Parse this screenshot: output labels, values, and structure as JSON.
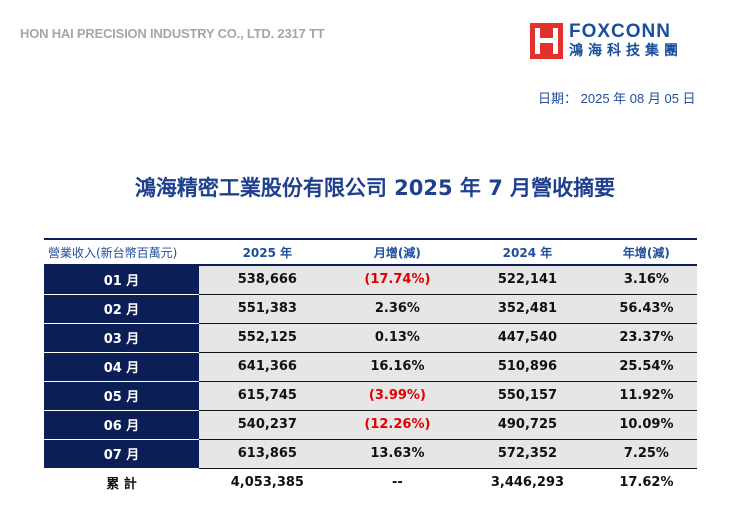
{
  "header": {
    "company": "HON HAI PRECISION INDUSTRY CO., LTD. 2317 TT",
    "logo_en": "FOXCONN",
    "logo_zh": "鴻海科技集團",
    "date_label": "日期：",
    "date_value": "2025 年 08 月 05 日"
  },
  "title": "鴻海精密工業股份有限公司 2025 年 7 月營收摘要",
  "colors": {
    "navy": "#0b1f56",
    "blue_text": "#1f4e9c",
    "negative": "#e00000",
    "logo_red": "#e3322e"
  },
  "table": {
    "headers": [
      "營業收入(新台幣百萬元)",
      "2025 年",
      "月增(減)",
      "2024 年",
      "年增(減)"
    ],
    "rows": [
      {
        "month": "01 月",
        "y2025": "538,666",
        "mom": "(17.74%)",
        "mom_neg": true,
        "y2024": "522,141",
        "yoy": "3.16%"
      },
      {
        "month": "02 月",
        "y2025": "551,383",
        "mom": "2.36%",
        "mom_neg": false,
        "y2024": "352,481",
        "yoy": "56.43%"
      },
      {
        "month": "03 月",
        "y2025": "552,125",
        "mom": "0.13%",
        "mom_neg": false,
        "y2024": "447,540",
        "yoy": "23.37%"
      },
      {
        "month": "04 月",
        "y2025": "641,366",
        "mom": "16.16%",
        "mom_neg": false,
        "y2024": "510,896",
        "yoy": "25.54%"
      },
      {
        "month": "05 月",
        "y2025": "615,745",
        "mom": "(3.99%)",
        "mom_neg": true,
        "y2024": "550,157",
        "yoy": "11.92%"
      },
      {
        "month": "06 月",
        "y2025": "540,237",
        "mom": "(12.26%)",
        "mom_neg": true,
        "y2024": "490,725",
        "yoy": "10.09%"
      },
      {
        "month": "07 月",
        "y2025": "613,865",
        "mom": "13.63%",
        "mom_neg": false,
        "y2024": "572,352",
        "yoy": "7.25%"
      }
    ],
    "total": {
      "month": "累 計",
      "y2025": "4,053,385",
      "mom": "--",
      "y2024": "3,446,293",
      "yoy": "17.62%"
    }
  }
}
